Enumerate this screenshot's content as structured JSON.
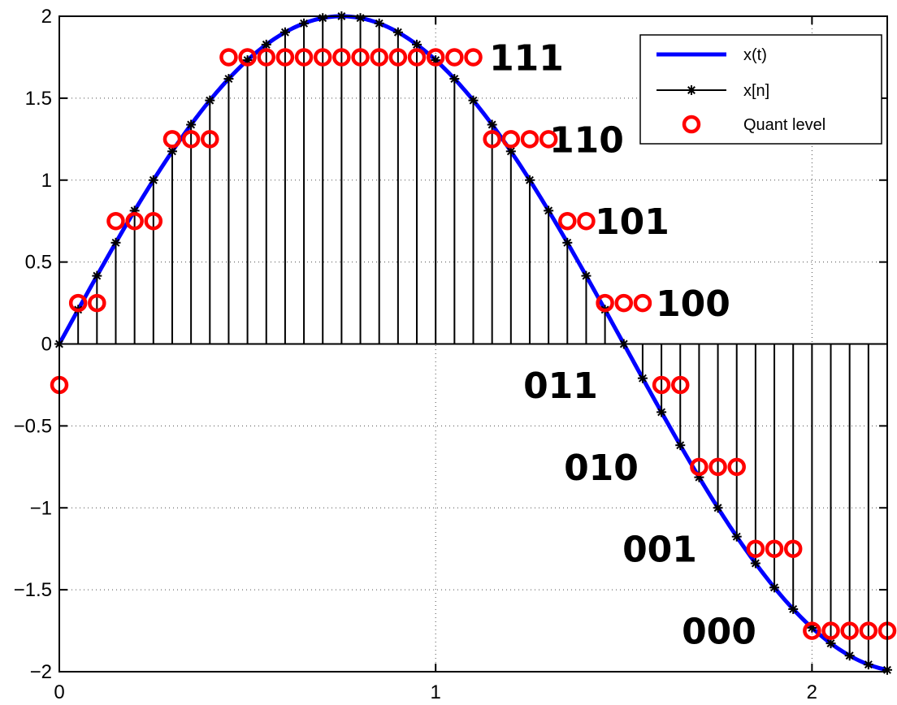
{
  "chart_data": {
    "type": "line",
    "xlim": [
      0,
      2.2
    ],
    "ylim": [
      -2,
      2
    ],
    "grid": true,
    "grid_style": "dotted",
    "legend_placement": "top-right",
    "x_ticks": [
      "0",
      "1",
      "2"
    ],
    "y_ticks": [
      "2",
      "1.5",
      "1",
      "0.5",
      "0",
      "−0.5",
      "−1",
      "−1.5",
      "−2"
    ],
    "continuous_signal": {
      "name": "x(t)",
      "color": "#0000ff",
      "amplitude": 2,
      "period": 3,
      "t_range": [
        0,
        2.2
      ]
    },
    "sampled_signal": {
      "name": "x[n]",
      "color": "#000000",
      "sample_period": 0.05,
      "marker": "asterisk-stem"
    },
    "quant_levels_series": {
      "name": "Quant level",
      "color": "#ff0000",
      "marker": "circle",
      "x": [
        0,
        0.05,
        0.1,
        0.15,
        0.2,
        0.25,
        0.3,
        0.35,
        0.4,
        0.45,
        0.5,
        0.55,
        0.6,
        0.65,
        0.7,
        0.75,
        0.8,
        0.85,
        0.9,
        0.95,
        1.0,
        1.05,
        1.1,
        1.15,
        1.2,
        1.25,
        1.3,
        1.35,
        1.4,
        1.45,
        1.5,
        1.55,
        1.6,
        1.65,
        1.7,
        1.75,
        1.8,
        1.85,
        1.9,
        1.95,
        2.0,
        2.05,
        2.1,
        2.15,
        2.2
      ],
      "y": [
        -0.25,
        0.25,
        0.25,
        0.75,
        0.75,
        0.75,
        1.25,
        1.25,
        1.25,
        1.75,
        1.75,
        1.75,
        1.75,
        1.75,
        1.75,
        1.75,
        1.75,
        1.75,
        1.75,
        1.75,
        1.75,
        1.75,
        1.75,
        1.25,
        1.25,
        1.25,
        1.25,
        0.75,
        0.75,
        0.25,
        0.25,
        0.25,
        -0.25,
        -0.25,
        -0.75,
        -0.75,
        -0.75,
        -1.25,
        -1.25,
        -1.25,
        -1.75,
        -1.75,
        -1.75,
        -1.75,
        -1.75
      ]
    },
    "code_labels": [
      {
        "text": "111",
        "y": 1.75
      },
      {
        "text": "110",
        "y": 1.25
      },
      {
        "text": "101",
        "y": 0.75
      },
      {
        "text": "100",
        "y": 0.25
      },
      {
        "text": "011",
        "y": -0.25
      },
      {
        "text": "010",
        "y": -0.75
      },
      {
        "text": "001",
        "y": -1.25
      },
      {
        "text": "000",
        "y": -1.75
      }
    ]
  }
}
